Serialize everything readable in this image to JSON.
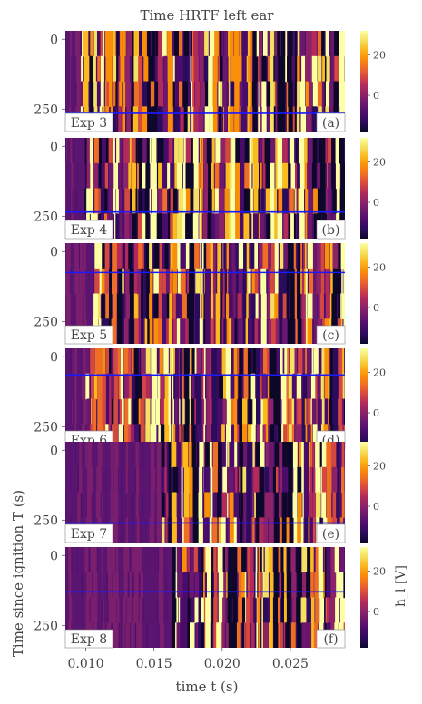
{
  "title": "Time HRTF left ear",
  "xlabel": "time t (s)",
  "ylabel": "Time since ignition T (s)",
  "colorbar_label": "h_l [V]",
  "colormap": [
    "#0d0829",
    "#2a0b5c",
    "#4a0c6b",
    "#6b176e",
    "#8c2369",
    "#b12a5a",
    "#d44842",
    "#ef6e26",
    "#f98e09",
    "#fbba1f",
    "#f5e161",
    "#fcffa4"
  ],
  "chart_data": {
    "type": "heatmap",
    "title": "Time HRTF left ear",
    "xlabel": "time t (s)",
    "ylabel": "Time since ignition T (s)",
    "xlim": [
      0.0085,
      0.029
    ],
    "xticks": [
      0.01,
      0.015,
      0.02,
      0.025
    ],
    "xtick_labels": [
      "0.010",
      "0.015",
      "0.020",
      "0.025"
    ],
    "ylim": [
      330,
      -30
    ],
    "yticks": [
      0,
      250
    ],
    "ytick_labels": [
      "0",
      "250"
    ],
    "colorbar": {
      "ticks": [
        20,
        0
      ],
      "tick_labels": [
        "20",
        "0"
      ],
      "range": [
        -18,
        32
      ]
    },
    "panels": [
      {
        "experiment": "Exp 3",
        "tag": "(a)",
        "line_T": 265,
        "first_arrival_s": 0.0093
      },
      {
        "experiment": "Exp 4",
        "tag": "(b)",
        "line_T": 235,
        "first_arrival_s": 0.0098
      },
      {
        "experiment": "Exp 5",
        "tag": "(c)",
        "line_T": 75,
        "first_arrival_s": 0.0105
      },
      {
        "experiment": "Exp 6",
        "tag": "(d)",
        "line_T": 65,
        "first_arrival_s": 0.0098
      },
      {
        "experiment": "Exp 7",
        "tag": "(e)",
        "line_T": 260,
        "first_arrival_s": 0.0155
      },
      {
        "experiment": "Exp 8",
        "tag": "(f)",
        "line_T": 130,
        "first_arrival_s": 0.016
      }
    ]
  }
}
